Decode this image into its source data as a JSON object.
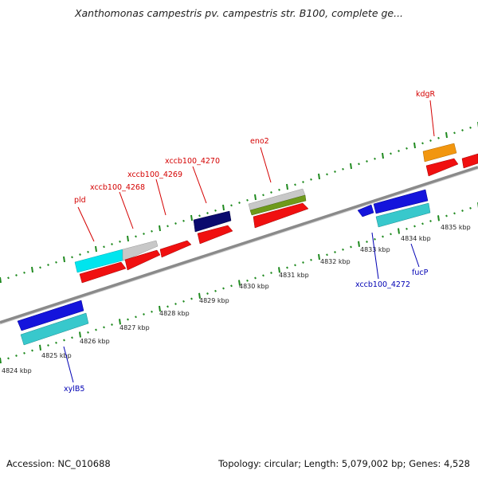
{
  "title": "Xanthomonas campestris pv. campestris str. B100, complete ge...",
  "footer": {
    "accession": "Accession: NC_010688",
    "info": "Topology: circular; Length: 5,079,002 bp; Genes: 4,528"
  },
  "colors": {
    "forward_label": "#d40000",
    "reverse_label": "#0000b4",
    "track_dots": "#1f8a1f",
    "backbone": "#8a8a8a"
  },
  "kbp_ticks": [
    "4824 kbp",
    "4825 kbp",
    "4826 kbp",
    "4827 kbp",
    "4828 kbp",
    "4829 kbp",
    "4830 kbp",
    "4831 kbp",
    "4832 kbp",
    "4833 kbp",
    "4834 kbp",
    "4835 kbp"
  ],
  "labels": {
    "pld": "pld",
    "xccb100_4268": "xccb100_4268",
    "xccb100_4269": "xccb100_4269",
    "xccb100_4270": "xccb100_4270",
    "eno2": "eno2",
    "kdgR": "kdgR",
    "xccb100_4272": "xccb100_4272",
    "fucP": "fucP",
    "xylB5": "xylB5"
  },
  "features": [
    {
      "name": "pld",
      "strand": "forward",
      "colors": [
        "cyan",
        "silver"
      ]
    },
    {
      "name": "xccb100_4268",
      "strand": "forward",
      "colors": [
        "red"
      ]
    },
    {
      "name": "xccb100_4269",
      "strand": "forward",
      "colors": [
        "red"
      ]
    },
    {
      "name": "xccb100_4270",
      "strand": "forward",
      "colors": [
        "navy",
        "red"
      ]
    },
    {
      "name": "eno2",
      "strand": "forward",
      "colors": [
        "silver",
        "olive-green",
        "red"
      ]
    },
    {
      "name": "kdgR",
      "strand": "forward",
      "colors": [
        "orange",
        "red"
      ]
    },
    {
      "name": "xccb100_4272",
      "strand": "reverse",
      "colors": [
        "blue"
      ]
    },
    {
      "name": "fucP",
      "strand": "reverse",
      "colors": [
        "blue",
        "teal"
      ]
    },
    {
      "name": "xylB5",
      "strand": "reverse",
      "colors": [
        "blue",
        "teal"
      ]
    }
  ]
}
